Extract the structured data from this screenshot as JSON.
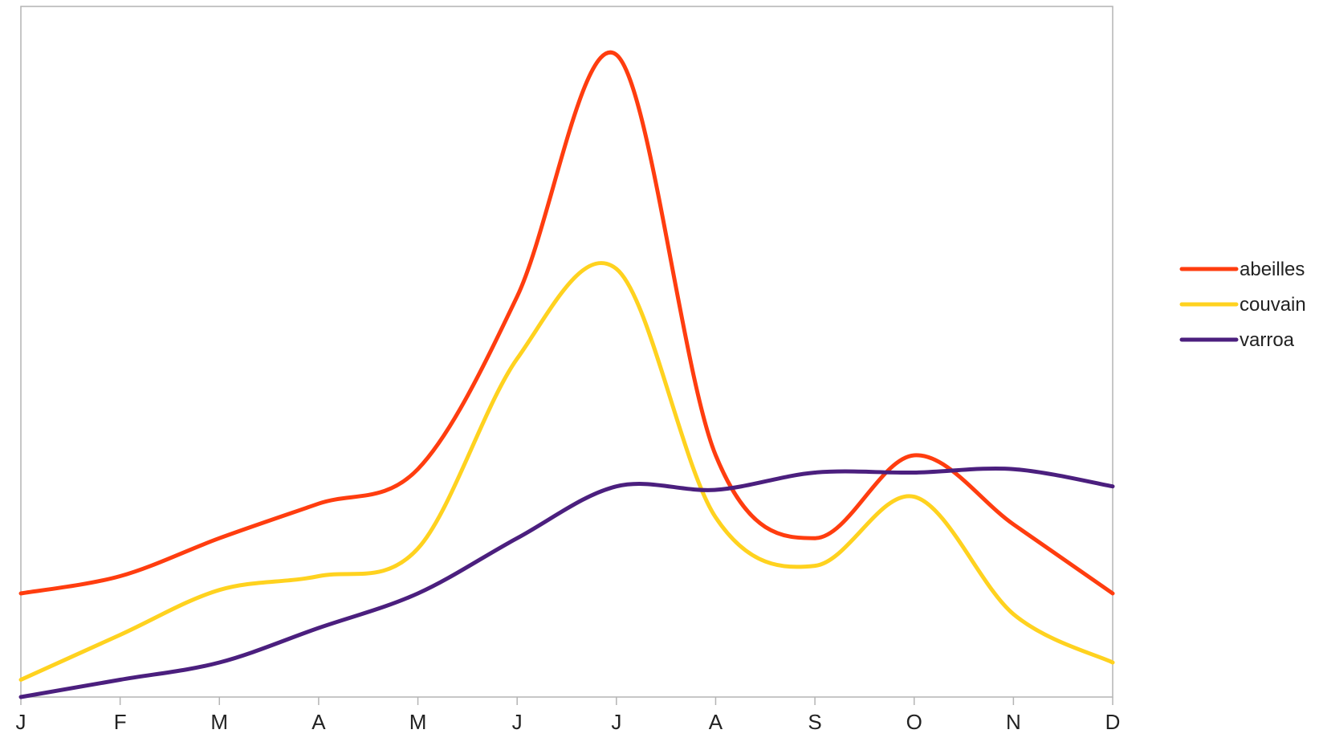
{
  "chart_data": {
    "type": "line",
    "title": "",
    "xlabel": "",
    "ylabel": "",
    "categories": [
      "J",
      "F",
      "M",
      "A",
      "M",
      "J",
      "J",
      "A",
      "S",
      "O",
      "N",
      "D"
    ],
    "ylim": [
      0,
      100
    ],
    "grid": false,
    "smooth": true,
    "legend_position": "right",
    "series": [
      {
        "name": "abeilles",
        "color": "#ff3d0f",
        "values": [
          15,
          17.5,
          23,
          28,
          33,
          58,
          93,
          35,
          23,
          35,
          25,
          15
        ]
      },
      {
        "name": "couvain",
        "color": "#ffd21f",
        "values": [
          2.5,
          9,
          15.5,
          17.5,
          21.5,
          49,
          62,
          26,
          19,
          29,
          12,
          5
        ]
      },
      {
        "name": "varroa",
        "color": "#4b1f7e",
        "values": [
          0,
          2.5,
          5,
          10,
          15,
          23,
          30.5,
          30,
          32.5,
          32.5,
          33,
          30.5
        ]
      }
    ]
  }
}
